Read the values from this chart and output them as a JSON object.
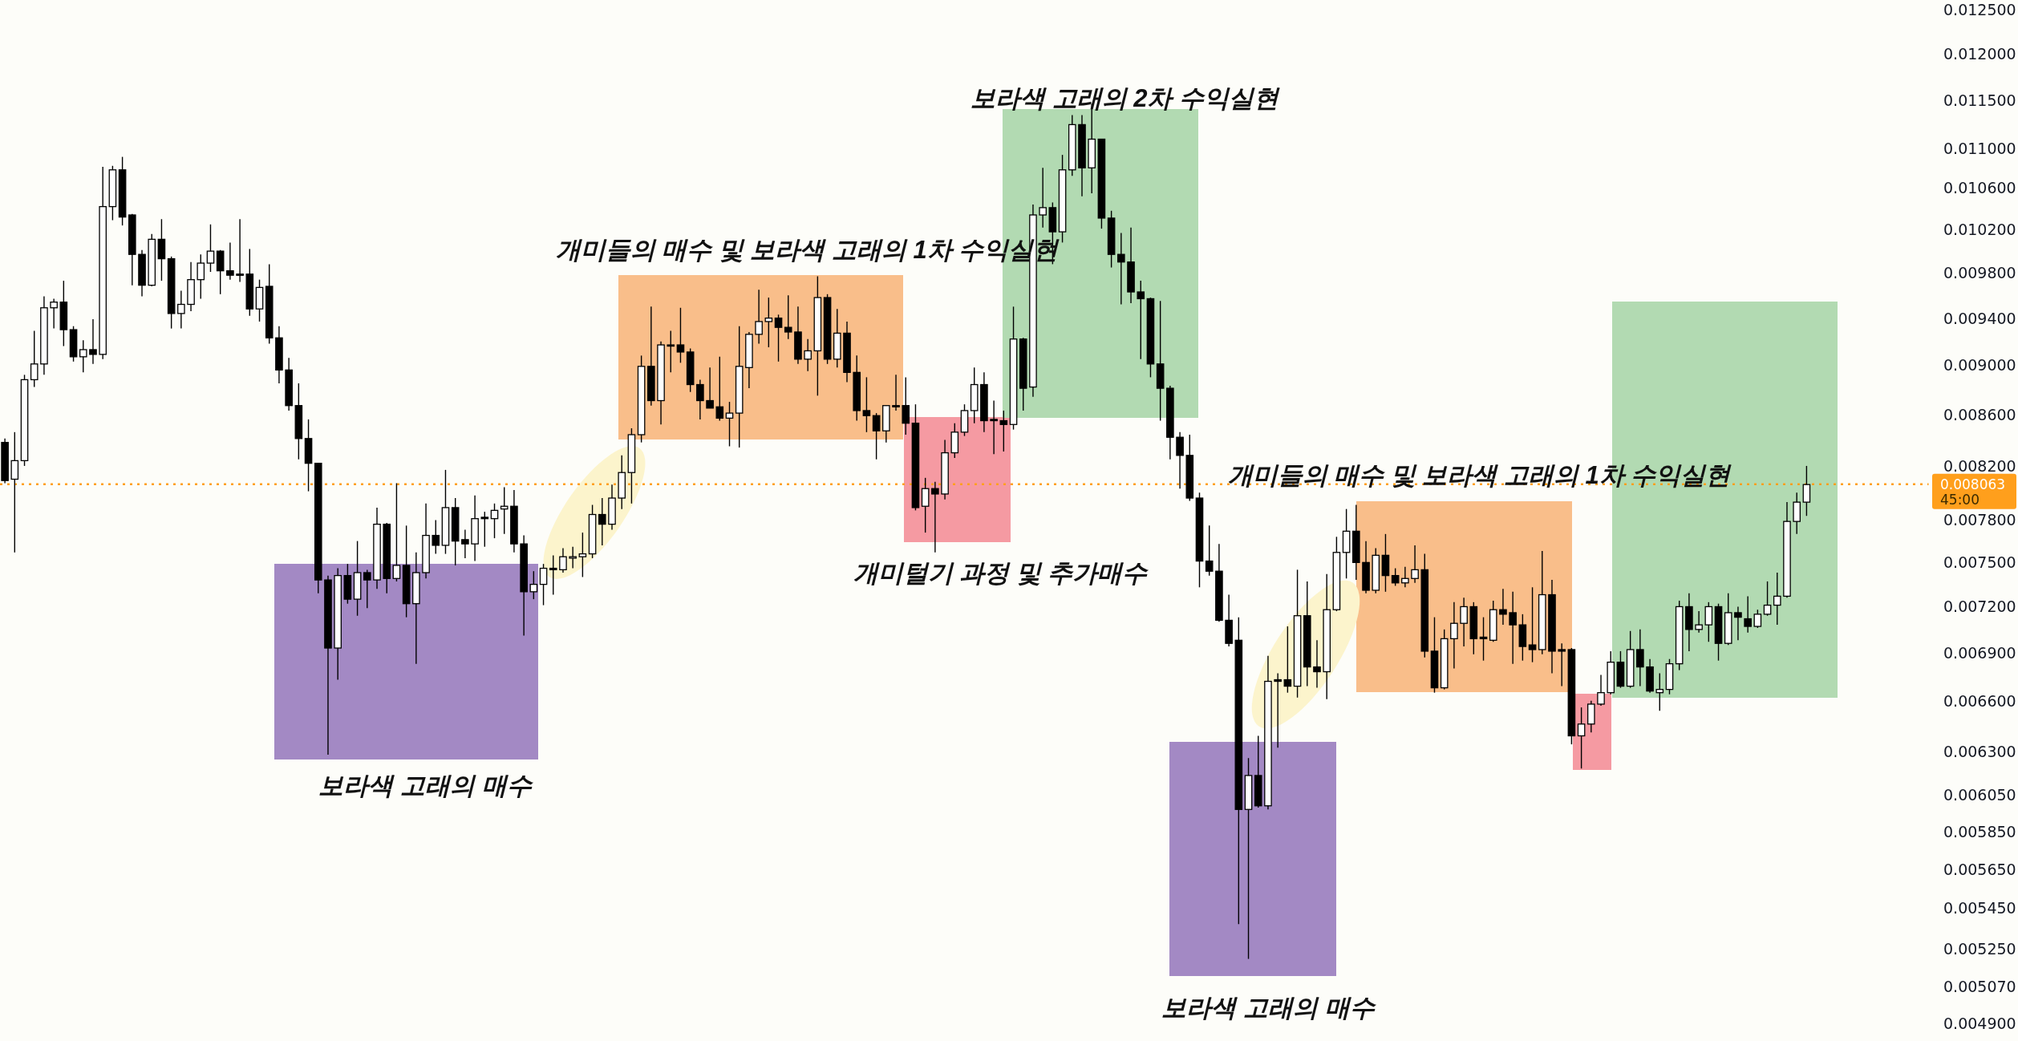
{
  "chart_data": {
    "type": "candlestick",
    "categories": [
      null,
      null,
      null,
      null,
      null,
      null,
      null,
      null,
      null,
      null,
      null,
      null,
      null,
      null,
      null,
      null,
      null,
      null,
      null,
      null,
      null,
      null,
      null,
      null,
      null,
      null,
      null,
      null,
      null,
      null,
      null,
      null,
      null,
      null,
      null,
      null,
      null,
      null,
      null,
      null,
      null,
      null,
      null,
      null,
      null,
      null,
      null,
      null,
      null,
      null,
      null,
      null,
      null,
      null,
      null,
      null,
      null,
      null,
      null,
      null,
      null,
      null,
      null,
      null,
      null,
      null,
      null,
      null,
      null,
      null,
      null,
      null,
      null,
      null,
      null,
      null,
      null,
      null,
      null,
      null,
      null,
      null,
      null,
      null,
      null,
      null,
      null,
      null,
      null,
      null,
      null,
      null,
      null,
      null,
      null,
      null,
      null,
      null,
      null,
      null,
      null,
      null,
      null,
      null,
      null,
      null,
      null,
      null,
      null,
      null,
      null,
      null,
      null,
      null,
      null,
      null,
      null,
      null,
      null,
      null,
      null,
      null,
      null,
      null,
      null,
      null,
      null,
      null,
      null,
      null,
      null,
      null,
      null,
      null,
      null,
      null,
      null,
      null,
      null,
      null,
      null,
      null,
      null,
      null,
      null,
      null,
      null,
      null,
      null,
      null,
      null,
      null,
      null,
      null,
      null,
      null,
      null,
      null,
      null,
      null,
      null,
      null,
      null,
      null,
      null,
      null,
      null,
      null,
      null,
      null,
      null,
      null,
      null,
      null,
      null,
      null,
      null,
      null,
      null,
      null,
      null,
      null,
      null,
      null,
      null,
      null,
      null,
      null,
      null,
      null,
      null,
      null,
      null,
      null,
      null,
      null,
      null
    ],
    "ohlc": [
      [
        0.00838,
        0.00841,
        0.00807,
        0.00809
      ],
      [
        0.0081,
        0.00846,
        0.00757,
        0.00824
      ],
      [
        0.00824,
        0.00892,
        0.0082,
        0.00888
      ],
      [
        0.00888,
        0.00929,
        0.00882,
        0.00901
      ],
      [
        0.00901,
        0.00959,
        0.00892,
        0.00949
      ],
      [
        0.00949,
        0.00957,
        0.00931,
        0.00954
      ],
      [
        0.00954,
        0.00973,
        0.00916,
        0.0093
      ],
      [
        0.0093,
        0.00933,
        0.00903,
        0.00907
      ],
      [
        0.00907,
        0.00921,
        0.00894,
        0.00913
      ],
      [
        0.00913,
        0.00939,
        0.00901,
        0.00909
      ],
      [
        0.00909,
        0.01081,
        0.00905,
        0.01042
      ],
      [
        0.01042,
        0.01082,
        0.01029,
        0.01078
      ],
      [
        0.01078,
        0.01091,
        0.01024,
        0.01032
      ],
      [
        0.01034,
        0.01035,
        0.00969,
        0.00997
      ],
      [
        0.00997,
        0.01001,
        0.00959,
        0.00969
      ],
      [
        0.00969,
        0.01016,
        0.00968,
        0.01011
      ],
      [
        0.01011,
        0.0103,
        0.00973,
        0.00993
      ],
      [
        0.00993,
        0.00995,
        0.00931,
        0.00944
      ],
      [
        0.00944,
        0.00964,
        0.00931,
        0.00952
      ],
      [
        0.00952,
        0.0099,
        0.00946,
        0.00974
      ],
      [
        0.00974,
        0.00997,
        0.00957,
        0.00989
      ],
      [
        0.00989,
        0.01025,
        0.00981,
        0.01
      ],
      [
        0.01,
        0.01001,
        0.00961,
        0.00982
      ],
      [
        0.00982,
        0.01008,
        0.00974,
        0.00978
      ],
      [
        0.00979,
        0.0103,
        0.00972,
        0.00978
      ],
      [
        0.00979,
        0.01002,
        0.00942,
        0.00948
      ],
      [
        0.00948,
        0.00974,
        0.00937,
        0.00967
      ],
      [
        0.00968,
        0.00988,
        0.00918,
        0.00923
      ],
      [
        0.00923,
        0.00933,
        0.00885,
        0.00896
      ],
      [
        0.00896,
        0.00906,
        0.00863,
        0.00867
      ],
      [
        0.00867,
        0.00885,
        0.00825,
        0.00841
      ],
      [
        0.00841,
        0.00856,
        0.00801,
        0.00822
      ],
      [
        0.00822,
        0.00822,
        0.00729,
        0.00738
      ],
      [
        0.00738,
        0.00741,
        0.00628,
        0.00693
      ],
      [
        0.00693,
        0.00746,
        0.00673,
        0.00741
      ],
      [
        0.00741,
        0.00749,
        0.00722,
        0.00725
      ],
      [
        0.00725,
        0.00765,
        0.00714,
        0.00743
      ],
      [
        0.00743,
        0.00745,
        0.00719,
        0.00738
      ],
      [
        0.00738,
        0.00789,
        0.00732,
        0.00777
      ],
      [
        0.00777,
        0.00778,
        0.00729,
        0.00739
      ],
      [
        0.00739,
        0.00807,
        0.00737,
        0.00748
      ],
      [
        0.00748,
        0.00776,
        0.00713,
        0.00722
      ],
      [
        0.00722,
        0.00757,
        0.00683,
        0.00743
      ],
      [
        0.00743,
        0.00792,
        0.00739,
        0.00769
      ],
      [
        0.00769,
        0.0078,
        0.00756,
        0.00762
      ],
      [
        0.00762,
        0.00817,
        0.00756,
        0.00789
      ],
      [
        0.00789,
        0.00796,
        0.00748,
        0.00765
      ],
      [
        0.00766,
        0.00773,
        0.00753,
        0.00763
      ],
      [
        0.00763,
        0.00798,
        0.00751,
        0.00781
      ],
      [
        0.00782,
        0.00786,
        0.00761,
        0.00781
      ],
      [
        0.00781,
        0.00792,
        0.00767,
        0.00787
      ],
      [
        0.00788,
        0.00804,
        0.0077,
        0.0079
      ],
      [
        0.0079,
        0.00802,
        0.00757,
        0.00763
      ],
      [
        0.00763,
        0.00769,
        0.00701,
        0.0073
      ],
      [
        0.0073,
        0.00744,
        0.00725,
        0.00735
      ],
      [
        0.00735,
        0.00749,
        0.00721,
        0.00746
      ],
      [
        0.00746,
        0.00755,
        0.00728,
        0.00745
      ],
      [
        0.00745,
        0.0076,
        0.00743,
        0.00754
      ],
      [
        0.00753,
        0.00761,
        0.00746,
        0.00754
      ],
      [
        0.00754,
        0.00771,
        0.0074,
        0.00756
      ],
      [
        0.00756,
        0.00791,
        0.00753,
        0.00784
      ],
      [
        0.00784,
        0.00796,
        0.00762,
        0.00777
      ],
      [
        0.00777,
        0.00806,
        0.00773,
        0.00796
      ],
      [
        0.00796,
        0.00828,
        0.00788,
        0.00815
      ],
      [
        0.00815,
        0.00849,
        0.00792,
        0.00844
      ],
      [
        0.00844,
        0.00908,
        0.00838,
        0.00899
      ],
      [
        0.00899,
        0.0095,
        0.00867,
        0.00871
      ],
      [
        0.00871,
        0.0092,
        0.00852,
        0.00917
      ],
      [
        0.00917,
        0.00929,
        0.00894,
        0.00916
      ],
      [
        0.00917,
        0.00949,
        0.00902,
        0.00911
      ],
      [
        0.00911,
        0.00914,
        0.00878,
        0.00884
      ],
      [
        0.00884,
        0.00888,
        0.00856,
        0.00871
      ],
      [
        0.00871,
        0.00898,
        0.00865,
        0.00865
      ],
      [
        0.00866,
        0.00907,
        0.00855,
        0.00857
      ],
      [
        0.00857,
        0.0087,
        0.00835,
        0.00861
      ],
      [
        0.00861,
        0.00933,
        0.00834,
        0.00899
      ],
      [
        0.00898,
        0.00928,
        0.00881,
        0.00926
      ],
      [
        0.00926,
        0.00965,
        0.00918,
        0.00937
      ],
      [
        0.00937,
        0.00958,
        0.00915,
        0.0094
      ],
      [
        0.0094,
        0.00943,
        0.00903,
        0.00932
      ],
      [
        0.00932,
        0.0096,
        0.00922,
        0.00928
      ],
      [
        0.00928,
        0.0095,
        0.00901,
        0.00905
      ],
      [
        0.00905,
        0.00922,
        0.00895,
        0.00912
      ],
      [
        0.00912,
        0.00977,
        0.00875,
        0.00958
      ],
      [
        0.00958,
        0.00961,
        0.00901,
        0.00905
      ],
      [
        0.00905,
        0.00948,
        0.00898,
        0.00927
      ],
      [
        0.00927,
        0.00937,
        0.00886,
        0.00894
      ],
      [
        0.00894,
        0.00908,
        0.00855,
        0.00863
      ],
      [
        0.00863,
        0.0089,
        0.00846,
        0.00859
      ],
      [
        0.00859,
        0.00861,
        0.00825,
        0.00847
      ],
      [
        0.00847,
        0.00867,
        0.00838,
        0.00867
      ],
      [
        0.00867,
        0.00892,
        0.00863,
        0.00866
      ],
      [
        0.00867,
        0.0089,
        0.00844,
        0.00853
      ],
      [
        0.00853,
        0.00868,
        0.00787,
        0.00789
      ],
      [
        0.0079,
        0.00811,
        0.00771,
        0.00803
      ],
      [
        0.00803,
        0.00808,
        0.00757,
        0.00799
      ],
      [
        0.00799,
        0.0084,
        0.00795,
        0.0083
      ],
      [
        0.0083,
        0.00853,
        0.00826,
        0.00846
      ],
      [
        0.00846,
        0.00868,
        0.00843,
        0.00863
      ],
      [
        0.00863,
        0.00898,
        0.00853,
        0.00884
      ],
      [
        0.00884,
        0.00894,
        0.00846,
        0.00855
      ],
      [
        0.00856,
        0.00871,
        0.00829,
        0.00855
      ],
      [
        0.00855,
        0.00863,
        0.00831,
        0.00852
      ],
      [
        0.00852,
        0.0095,
        0.00848,
        0.00922
      ],
      [
        0.00922,
        0.00923,
        0.00863,
        0.00881
      ],
      [
        0.00882,
        0.01044,
        0.00874,
        0.01034
      ],
      [
        0.01034,
        0.0108,
        0.01022,
        0.01041
      ],
      [
        0.01041,
        0.01046,
        0.00988,
        0.01018
      ],
      [
        0.01018,
        0.01093,
        0.01008,
        0.01078
      ],
      [
        0.01078,
        0.01134,
        0.01072,
        0.01124
      ],
      [
        0.01124,
        0.01134,
        0.01052,
        0.0108
      ],
      [
        0.0108,
        0.01146,
        0.01055,
        0.01109
      ],
      [
        0.01109,
        0.01109,
        0.01021,
        0.01031
      ],
      [
        0.01031,
        0.01038,
        0.00985,
        0.00997
      ],
      [
        0.00997,
        0.01017,
        0.00952,
        0.0099
      ],
      [
        0.0099,
        0.01022,
        0.00953,
        0.00963
      ],
      [
        0.00963,
        0.00973,
        0.00905,
        0.00957
      ],
      [
        0.00957,
        0.00958,
        0.0089,
        0.00901
      ],
      [
        0.00901,
        0.00955,
        0.00855,
        0.00881
      ],
      [
        0.00881,
        0.00883,
        0.00825,
        0.00842
      ],
      [
        0.00842,
        0.00846,
        0.00803,
        0.00828
      ],
      [
        0.00828,
        0.00844,
        0.00794,
        0.00796
      ],
      [
        0.00796,
        0.008,
        0.00733,
        0.00751
      ],
      [
        0.00751,
        0.00776,
        0.00741,
        0.00744
      ],
      [
        0.00744,
        0.00763,
        0.0071,
        0.00711
      ],
      [
        0.00711,
        0.00728,
        0.00694,
        0.00696
      ],
      [
        0.00698,
        0.00713,
        0.00537,
        0.00597
      ],
      [
        0.00597,
        0.00626,
        0.0052,
        0.00616
      ],
      [
        0.00616,
        0.00639,
        0.00598,
        0.00599
      ],
      [
        0.00599,
        0.00688,
        0.00597,
        0.00672
      ],
      [
        0.00673,
        0.00677,
        0.00632,
        0.00672
      ],
      [
        0.00673,
        0.00707,
        0.00665,
        0.00669
      ],
      [
        0.00669,
        0.00745,
        0.00662,
        0.00714
      ],
      [
        0.00714,
        0.00737,
        0.00669,
        0.00681
      ],
      [
        0.00681,
        0.00698,
        0.00668,
        0.00678
      ],
      [
        0.00678,
        0.00742,
        0.00661,
        0.00718
      ],
      [
        0.00718,
        0.00768,
        0.00717,
        0.00757
      ],
      [
        0.00757,
        0.00788,
        0.00739,
        0.00772
      ],
      [
        0.00772,
        0.00791,
        0.00738,
        0.0075
      ],
      [
        0.0075,
        0.00765,
        0.00729,
        0.00731
      ],
      [
        0.00731,
        0.0076,
        0.00729,
        0.00755
      ],
      [
        0.00755,
        0.0077,
        0.0073,
        0.00741
      ],
      [
        0.00741,
        0.00746,
        0.00734,
        0.00736
      ],
      [
        0.00736,
        0.00747,
        0.00733,
        0.00739
      ],
      [
        0.00739,
        0.00762,
        0.00736,
        0.00745
      ],
      [
        0.00745,
        0.00756,
        0.00687,
        0.00691
      ],
      [
        0.00691,
        0.00713,
        0.00665,
        0.00668
      ],
      [
        0.00668,
        0.00705,
        0.00667,
        0.00699
      ],
      [
        0.00699,
        0.00723,
        0.0068,
        0.00709
      ],
      [
        0.00709,
        0.00726,
        0.00694,
        0.0072
      ],
      [
        0.0072,
        0.00723,
        0.00689,
        0.00699
      ],
      [
        0.007,
        0.00713,
        0.00685,
        0.00699
      ],
      [
        0.00698,
        0.00724,
        0.00697,
        0.00718
      ],
      [
        0.00718,
        0.00732,
        0.00708,
        0.00715
      ],
      [
        0.00716,
        0.0073,
        0.00683,
        0.00708
      ],
      [
        0.00708,
        0.00715,
        0.00685,
        0.00694
      ],
      [
        0.00695,
        0.00733,
        0.00684,
        0.00692
      ],
      [
        0.00692,
        0.00758,
        0.00689,
        0.00728
      ],
      [
        0.00728,
        0.00738,
        0.00677,
        0.00691
      ],
      [
        0.00692,
        0.00696,
        0.00669,
        0.00691
      ],
      [
        0.00692,
        0.00693,
        0.00634,
        0.00639
      ],
      [
        0.00639,
        0.00656,
        0.0062,
        0.00646
      ],
      [
        0.00646,
        0.0066,
        0.00641,
        0.00658
      ],
      [
        0.00658,
        0.00676,
        0.00657,
        0.00665
      ],
      [
        0.00665,
        0.00691,
        0.00664,
        0.00684
      ],
      [
        0.00684,
        0.00691,
        0.00668,
        0.00669
      ],
      [
        0.00669,
        0.00704,
        0.00668,
        0.00692
      ],
      [
        0.00692,
        0.00705,
        0.00669,
        0.00681
      ],
      [
        0.00681,
        0.00686,
        0.00665,
        0.00666
      ],
      [
        0.00665,
        0.00677,
        0.00654,
        0.00667
      ],
      [
        0.00667,
        0.00686,
        0.00664,
        0.00683
      ],
      [
        0.00683,
        0.00724,
        0.00679,
        0.0072
      ],
      [
        0.0072,
        0.00729,
        0.00691,
        0.00705
      ],
      [
        0.00705,
        0.00717,
        0.00703,
        0.00708
      ],
      [
        0.00708,
        0.00723,
        0.00697,
        0.0072
      ],
      [
        0.0072,
        0.00722,
        0.00685,
        0.00696
      ],
      [
        0.00696,
        0.00729,
        0.00695,
        0.00716
      ],
      [
        0.00716,
        0.0072,
        0.00698,
        0.00713
      ],
      [
        0.00712,
        0.00727,
        0.00703,
        0.00707
      ],
      [
        0.00707,
        0.00718,
        0.00706,
        0.00715
      ],
      [
        0.00715,
        0.00737,
        0.00714,
        0.00721
      ],
      [
        0.00721,
        0.00743,
        0.00708,
        0.00727
      ],
      [
        0.00727,
        0.00793,
        0.00726,
        0.00779
      ],
      [
        0.00779,
        0.008,
        0.0077,
        0.00793
      ],
      [
        0.00793,
        0.0082,
        0.00783,
        0.00806
      ],
      null,
      null,
      null,
      null,
      null,
      null,
      null,
      null,
      null,
      null,
      null,
      null
    ],
    "ylim": [
      0.00482,
      0.0125
    ],
    "log": true,
    "tick_labels": "y",
    "yticks": [
      {
        "value": 0.0125,
        "label": "0.012500"
      },
      {
        "value": 0.012,
        "label": "0.012000"
      },
      {
        "value": 0.0115,
        "label": "0.011500"
      },
      {
        "value": 0.011,
        "label": "0.011000"
      },
      {
        "value": 0.0106,
        "label": "0.010600"
      },
      {
        "value": 0.0102,
        "label": "0.010200"
      },
      {
        "value": 0.0098,
        "label": "0.009800"
      },
      {
        "value": 0.0094,
        "label": "0.009400"
      },
      {
        "value": 0.009,
        "label": "0.009000"
      },
      {
        "value": 0.0086,
        "label": "0.008600"
      },
      {
        "value": 0.0082,
        "label": "0.008200"
      },
      {
        "value": 0.0078,
        "label": "0.007800"
      },
      {
        "value": 0.0075,
        "label": "0.007500"
      },
      {
        "value": 0.0072,
        "label": "0.007200"
      },
      {
        "value": 0.0069,
        "label": "0.006900"
      },
      {
        "value": 0.0066,
        "label": "0.006600"
      },
      {
        "value": 0.0063,
        "label": "0.006300"
      },
      {
        "value": 0.00605,
        "label": "0.006050"
      },
      {
        "value": 0.00585,
        "label": "0.005850"
      },
      {
        "value": 0.00565,
        "label": "0.005650"
      },
      {
        "value": 0.00545,
        "label": "0.005450"
      },
      {
        "value": 0.00525,
        "label": "0.005250"
      },
      {
        "value": 0.00507,
        "label": "0.005070"
      },
      {
        "value": 0.0049,
        "label": "0.004900"
      }
    ],
    "ref_lines": [
      {
        "axis": "y",
        "value": 0.008063,
        "label": "0.008063\n45:00",
        "color": "#ff9f1c",
        "line_style": "dotted"
      }
    ],
    "annotations": [
      "보라색 고래의 매수",
      "개미들의 매수 및 보라색 고래의 1차 수익실현",
      "개미털기 과정 및 추가매수",
      "보라색 고래의 2차 수익실현",
      "개미들의 매수 및 보라색 고래의 1차 수익실현",
      "보라색 고래의 매수"
    ]
  }
}
